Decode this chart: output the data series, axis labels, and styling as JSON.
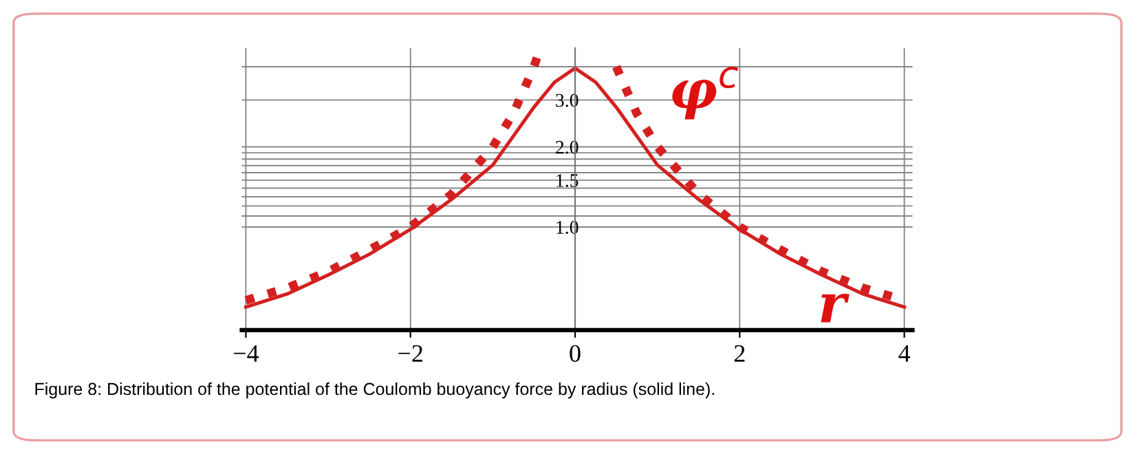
{
  "chart_data": {
    "type": "line",
    "x": [
      -4,
      -3.5,
      -3,
      -2.5,
      -2,
      -1.5,
      -1,
      -0.5,
      -0.25,
      0,
      0.25,
      0.5,
      1,
      1.5,
      2,
      2.5,
      3,
      3.5,
      4
    ],
    "series": [
      {
        "color": "#d42020",
        "line_style": "solid",
        "values": [
          0.5,
          0.56,
          0.66,
          0.79,
          0.98,
          1.27,
          1.71,
          2.82,
          3.5,
          3.95,
          3.5,
          2.82,
          1.71,
          1.27,
          0.98,
          0.79,
          0.66,
          0.56,
          0.5
        ]
      },
      {
        "color": "#d42020",
        "line_style": "dotted",
        "x": [
          -4,
          -3.5,
          -3,
          -2.5,
          -2,
          -1.5,
          -1,
          -0.75,
          -0.5,
          -0.43,
          0.43,
          0.5,
          0.75,
          1,
          1.5,
          2,
          2.5,
          3,
          3.5,
          4
        ],
        "values": [
          0.53,
          0.59,
          0.68,
          0.82,
          1.0,
          1.33,
          2.0,
          2.67,
          4.0,
          4.65,
          null,
          4.0,
          2.67,
          2.0,
          1.33,
          1.0,
          0.82,
          0.68,
          0.59,
          0.53
        ]
      }
    ],
    "log": true,
    "xlim": [
      -4.05,
      4.1
    ],
    "ylim": [
      0.41,
      4.7
    ],
    "xticks": [
      {
        "value": -4,
        "label": "−4"
      },
      {
        "value": -2,
        "label": "−2"
      },
      0,
      2,
      4
    ],
    "yticks": [
      {
        "value": 1.0,
        "label": "1.0"
      },
      {
        "value": 1.1,
        "label": null
      },
      {
        "value": 1.2,
        "label": null
      },
      {
        "value": 1.3,
        "label": null
      },
      {
        "value": 1.4,
        "label": null
      },
      {
        "value": 1.5,
        "label": "1.5"
      },
      {
        "value": 1.6,
        "label": null
      },
      {
        "value": 1.7,
        "label": null
      },
      {
        "value": 1.8,
        "label": null
      },
      {
        "value": 1.9,
        "label": null
      },
      {
        "value": 2.0,
        "label": "2.0"
      },
      {
        "value": 3.0,
        "label": "3.0"
      },
      {
        "value": 4.0,
        "label": null
      }
    ],
    "grid": true,
    "annotations": [
      "φ$^{c}$",
      "r",
      "Figure 8: Distribution of the potential of the Coulomb buoyancy force by radius (solid line)."
    ]
  }
}
